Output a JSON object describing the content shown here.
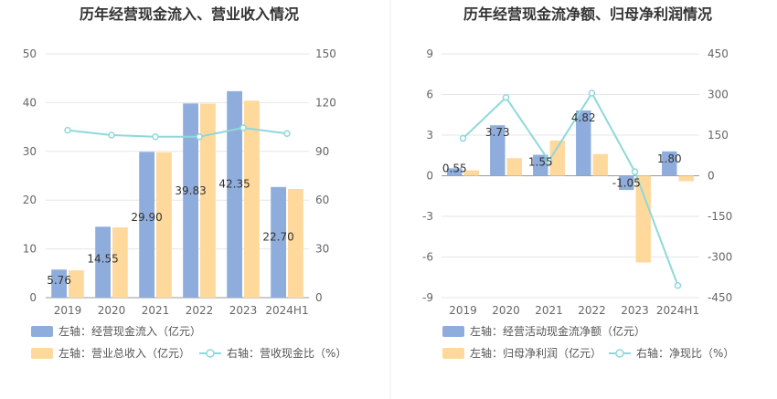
{
  "chart_data": [
    {
      "type": "bar",
      "title": "历年经营现金流入、营业收入情况",
      "categories": [
        "2019",
        "2020",
        "2021",
        "2022",
        "2023",
        "2024H1"
      ],
      "series": [
        {
          "name": "左轴：经营现金流入（亿元）",
          "axis": "left",
          "type": "bar",
          "color": "#8FADDC",
          "values": [
            5.76,
            14.55,
            29.9,
            39.83,
            42.35,
            22.7
          ],
          "labels": [
            "5.76",
            "14.55",
            "29.90",
            "39.83",
            "42.35",
            "22.70"
          ]
        },
        {
          "name": "左轴：营业总收入（亿元）",
          "axis": "left",
          "type": "bar",
          "color": "#FFD99B",
          "values": [
            5.6,
            14.4,
            29.8,
            39.8,
            40.4,
            22.3
          ]
        },
        {
          "name": "右轴：营收现金比（%）",
          "axis": "right",
          "type": "line",
          "color": "#8ED8DC",
          "values": [
            103,
            100,
            99,
            99,
            104.5,
            101
          ]
        }
      ],
      "yleft": {
        "ticks": [
          "0",
          "10",
          "20",
          "30",
          "40",
          "50"
        ],
        "ylim": [
          0,
          50
        ]
      },
      "yright": {
        "ticks": [
          "0",
          "30",
          "60",
          "90",
          "120",
          "150"
        ],
        "ylim": [
          0,
          150
        ]
      },
      "legend": "bottom"
    },
    {
      "type": "bar",
      "title": "历年经营现金流净额、归母净利润情况",
      "categories": [
        "2019",
        "2020",
        "2021",
        "2022",
        "2023",
        "2024H1"
      ],
      "series": [
        {
          "name": "左轴：经营活动现金流净额（亿元）",
          "axis": "left",
          "type": "bar",
          "color": "#8FADDC",
          "values": [
            0.55,
            3.73,
            1.55,
            4.82,
            -1.05,
            1.8
          ],
          "labels": [
            "0.55",
            "3.73",
            "1.55",
            "4.82",
            "-1.05",
            "1.80"
          ]
        },
        {
          "name": "左轴：归母净利润（亿元）",
          "axis": "left",
          "type": "bar",
          "color": "#FFD99B",
          "values": [
            0.4,
            1.3,
            2.6,
            1.6,
            -6.4,
            -0.4
          ]
        },
        {
          "name": "右轴：净现比（%）",
          "axis": "right",
          "type": "line",
          "color": "#8ED8DC",
          "values": [
            138,
            289,
            55,
            305,
            15,
            -405
          ]
        }
      ],
      "yleft": {
        "ticks": [
          "-9",
          "-6",
          "-3",
          "0",
          "3",
          "6",
          "9"
        ],
        "ylim": [
          -9,
          9
        ]
      },
      "yright": {
        "ticks": [
          "-450",
          "-300",
          "-150",
          "0",
          "150",
          "300",
          "450"
        ],
        "ylim": [
          -450,
          450
        ]
      },
      "legend": "bottom"
    }
  ]
}
